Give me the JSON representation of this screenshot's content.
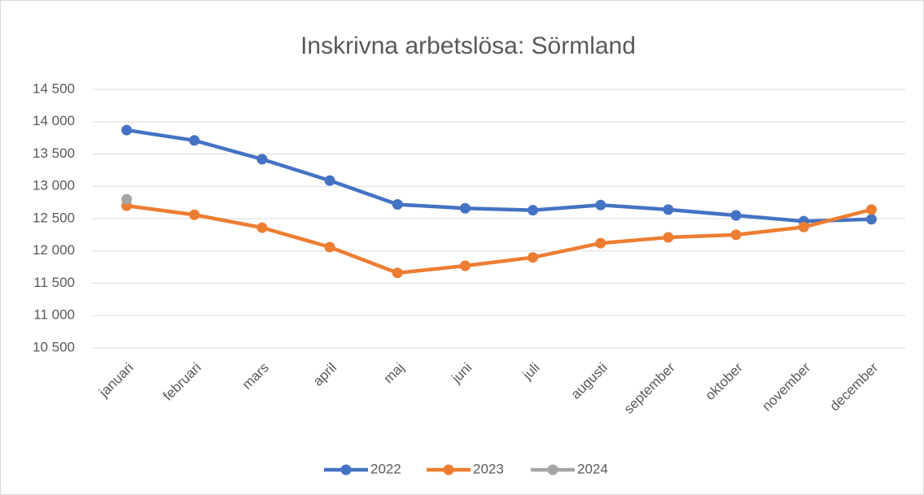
{
  "chart_data": {
    "type": "line",
    "title": "Inskrivna arbetslösa: Sörmland",
    "categories": [
      "januari",
      "februari",
      "mars",
      "april",
      "maj",
      "juni",
      "juli",
      "augusti",
      "september",
      "oktober",
      "november",
      "december"
    ],
    "series": [
      {
        "name": "2022",
        "color": "#4472c4",
        "values": [
          13870,
          13710,
          13420,
          13090,
          12720,
          12660,
          12630,
          12710,
          12640,
          12550,
          12460,
          12490
        ]
      },
      {
        "name": "2023",
        "color": "#ed7d31",
        "values": [
          12700,
          12560,
          12360,
          12060,
          11660,
          11770,
          11900,
          12120,
          12210,
          12250,
          12370,
          12640
        ]
      },
      {
        "name": "2024",
        "color": "#a5a5a5",
        "values": [
          12800,
          null,
          null,
          null,
          null,
          null,
          null,
          null,
          null,
          null,
          null,
          null
        ]
      }
    ],
    "ylim": [
      10500,
      14500
    ],
    "yticks": [
      {
        "value": 10500,
        "label": "10 500"
      },
      {
        "value": 11000,
        "label": "11 000"
      },
      {
        "value": 11500,
        "label": "11 500"
      },
      {
        "value": 12000,
        "label": "12 000"
      },
      {
        "value": 12500,
        "label": "12 500"
      },
      {
        "value": 13000,
        "label": "13 000"
      },
      {
        "value": 13500,
        "label": "13 500"
      },
      {
        "value": 14000,
        "label": "14 000"
      },
      {
        "value": 14500,
        "label": "14 500"
      }
    ],
    "grid": true,
    "legend": "bottom"
  }
}
